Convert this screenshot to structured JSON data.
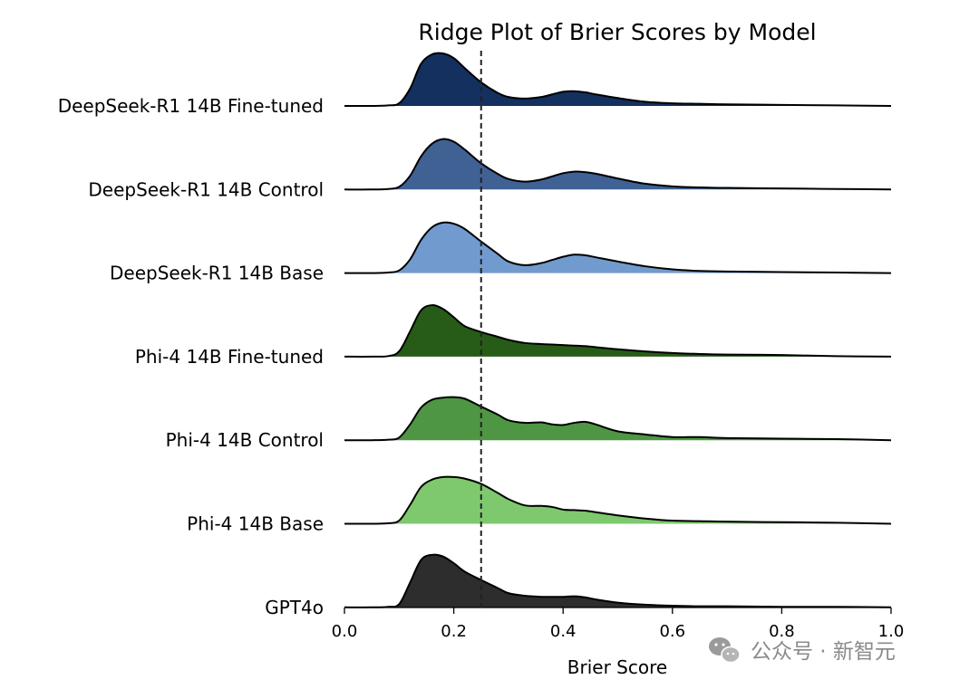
{
  "chart_data": {
    "type": "ridgeline",
    "title": "Ridge Plot of Brier Scores by Model",
    "xlabel": "Brier Score",
    "xlim": [
      0.0,
      1.0
    ],
    "xticks": [
      "0.0",
      "0.2",
      "0.4",
      "0.6",
      "0.8",
      "1.0"
    ],
    "reference_line": {
      "x": 0.25,
      "style": "dashed"
    },
    "grid": false,
    "x": [
      0.0,
      0.05,
      0.08,
      0.1,
      0.12,
      0.14,
      0.16,
      0.18,
      0.2,
      0.22,
      0.25,
      0.28,
      0.3,
      0.33,
      0.36,
      0.38,
      0.4,
      0.42,
      0.44,
      0.46,
      0.5,
      0.55,
      0.6,
      0.65,
      0.7,
      0.8,
      0.9,
      1.0
    ],
    "series": [
      {
        "name": "DeepSeek-R1 14B Fine-tuned",
        "color": "#13305f",
        "values": [
          0,
          0,
          0.01,
          0.05,
          0.33,
          0.8,
          0.98,
          1.0,
          0.91,
          0.72,
          0.45,
          0.25,
          0.17,
          0.14,
          0.17,
          0.22,
          0.27,
          0.28,
          0.26,
          0.22,
          0.15,
          0.08,
          0.05,
          0.04,
          0.03,
          0.02,
          0.01,
          0
        ]
      },
      {
        "name": "DeepSeek-R1 14B Control",
        "color": "#3f6194",
        "values": [
          0,
          0,
          0.01,
          0.05,
          0.26,
          0.63,
          0.87,
          0.96,
          0.91,
          0.76,
          0.5,
          0.3,
          0.2,
          0.15,
          0.19,
          0.25,
          0.31,
          0.34,
          0.33,
          0.3,
          0.21,
          0.11,
          0.06,
          0.04,
          0.03,
          0.02,
          0.01,
          0
        ]
      },
      {
        "name": "DeepSeek-R1 14B Base",
        "color": "#719bce",
        "values": [
          0,
          0,
          0.01,
          0.05,
          0.26,
          0.63,
          0.87,
          0.96,
          0.94,
          0.84,
          0.6,
          0.37,
          0.22,
          0.15,
          0.19,
          0.25,
          0.31,
          0.35,
          0.34,
          0.3,
          0.22,
          0.13,
          0.07,
          0.04,
          0.03,
          0.02,
          0.01,
          0
        ]
      },
      {
        "name": "Phi-4 14B Fine-tuned",
        "color": "#265c17",
        "values": [
          0,
          0,
          0.01,
          0.1,
          0.48,
          0.88,
          0.98,
          0.91,
          0.75,
          0.58,
          0.47,
          0.38,
          0.32,
          0.26,
          0.24,
          0.23,
          0.22,
          0.21,
          0.2,
          0.18,
          0.14,
          0.1,
          0.07,
          0.05,
          0.04,
          0.03,
          0.01,
          0
        ]
      },
      {
        "name": "Phi-4 14B Control",
        "color": "#4e9643",
        "values": [
          0,
          0,
          0.01,
          0.05,
          0.3,
          0.62,
          0.77,
          0.81,
          0.82,
          0.79,
          0.64,
          0.49,
          0.38,
          0.33,
          0.34,
          0.3,
          0.29,
          0.33,
          0.35,
          0.3,
          0.17,
          0.11,
          0.06,
          0.06,
          0.04,
          0.03,
          0.02,
          0
        ]
      },
      {
        "name": "Phi-4 14B Base",
        "color": "#7ec96e",
        "values": [
          0,
          0,
          0.01,
          0.06,
          0.36,
          0.7,
          0.84,
          0.89,
          0.89,
          0.86,
          0.76,
          0.59,
          0.47,
          0.35,
          0.34,
          0.32,
          0.27,
          0.26,
          0.25,
          0.22,
          0.16,
          0.1,
          0.06,
          0.05,
          0.04,
          0.03,
          0.02,
          0
        ]
      },
      {
        "name": "GPT4o",
        "color": "#2d2d2d",
        "values": [
          0,
          0,
          0.01,
          0.06,
          0.47,
          0.9,
          1.0,
          0.97,
          0.84,
          0.68,
          0.52,
          0.37,
          0.27,
          0.22,
          0.2,
          0.2,
          0.2,
          0.21,
          0.19,
          0.15,
          0.09,
          0.05,
          0.03,
          0.02,
          0.02,
          0.01,
          0.01,
          0
        ]
      }
    ]
  },
  "watermark": {
    "text": "公众号 · 新智元",
    "icon": "wechat-icon"
  }
}
